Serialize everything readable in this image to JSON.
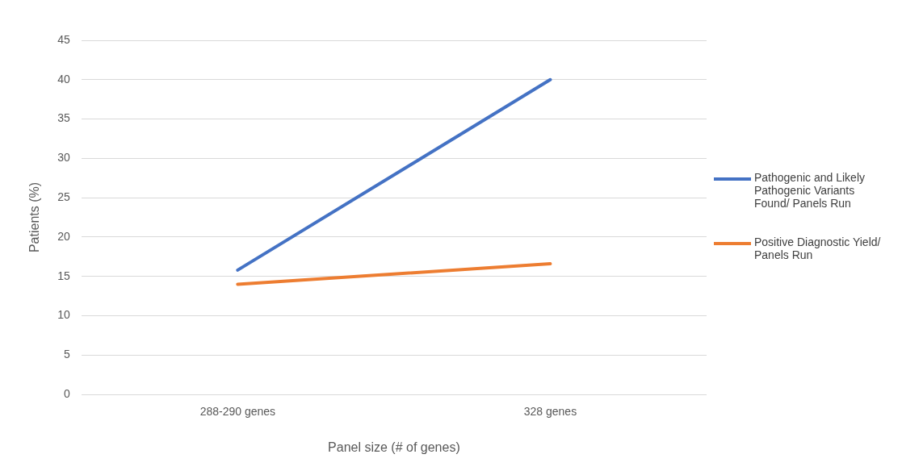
{
  "chart_data": {
    "type": "line",
    "xlabel": "Panel size (# of genes)",
    "ylabel": "Patients (%)",
    "categories": [
      "288-290 genes",
      "328 genes"
    ],
    "series": [
      {
        "name": "Pathogenic and Likely Pathogenic Variants Found/ Panels Run",
        "color": "#4472c4",
        "values": [
          15.8,
          40
        ]
      },
      {
        "name": "Positive Diagnostic Yield/ Panels Run",
        "color": "#ed7d31",
        "values": [
          14,
          16.6
        ]
      }
    ],
    "ylim": [
      0,
      45
    ],
    "yticks": [
      0,
      5,
      10,
      15,
      20,
      25,
      30,
      35,
      40,
      45
    ],
    "grid": "y",
    "legend": "right",
    "marker": "none",
    "line_style": "solid"
  }
}
